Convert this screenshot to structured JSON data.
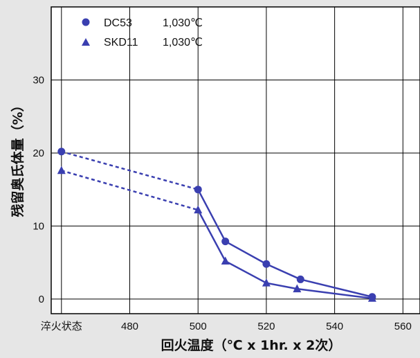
{
  "chart_data": {
    "type": "line",
    "xlabel": "回火温度（℃ x 1hr. x 2次）",
    "ylabel": "残留奥氏体量（%）",
    "x_tick_labels": [
      {
        "x": 460,
        "label": "淬火状态"
      },
      {
        "x": 480,
        "label": "480"
      },
      {
        "x": 500,
        "label": "500"
      },
      {
        "x": 520,
        "label": "520"
      },
      {
        "x": 540,
        "label": "540"
      },
      {
        "x": 560,
        "label": "560"
      }
    ],
    "y_ticks": [
      0,
      10,
      20,
      30
    ],
    "xlim": [
      457,
      565
    ],
    "ylim": [
      -2,
      40
    ],
    "grid": true,
    "legend_position": "top-left",
    "series": [
      {
        "name": "DC53",
        "temp_label": "1,030℃",
        "marker": "circle",
        "color": "#3a3fb0",
        "points": [
          [
            460,
            20.2
          ],
          [
            500,
            15.0
          ],
          [
            508,
            7.9
          ],
          [
            520,
            4.8
          ],
          [
            530,
            2.7
          ],
          [
            551,
            0.3
          ]
        ],
        "dashed_segments": [
          0
        ]
      },
      {
        "name": "SKD11",
        "temp_label": "1,030℃",
        "marker": "triangle",
        "color": "#3a3fb0",
        "points": [
          [
            460,
            17.6
          ],
          [
            500,
            12.2
          ],
          [
            508,
            5.2
          ],
          [
            520,
            2.2
          ],
          [
            529,
            1.4
          ],
          [
            551,
            0.1
          ]
        ],
        "dashed_segments": [
          0
        ]
      }
    ]
  }
}
